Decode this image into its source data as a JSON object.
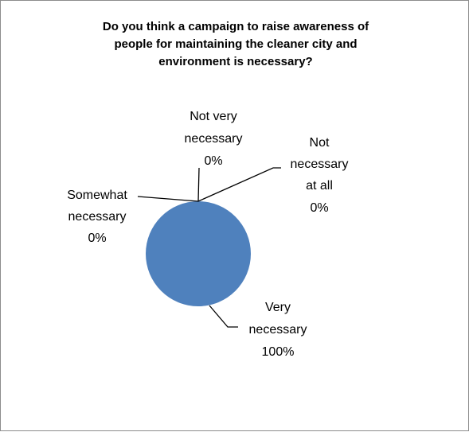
{
  "chart_data": {
    "type": "pie",
    "title": "Do you think a campaign to raise awareness of people for maintaining the cleaner city and environment is necessary?",
    "title_lines": [
      "Do you think a campaign to raise awareness of",
      "people for maintaining the cleaner city and",
      "environment is necessary?"
    ],
    "slices": [
      {
        "label": "Very necessary",
        "label_lines": [
          "Very",
          "necessary",
          "100%"
        ],
        "value": 100,
        "color": "#4f81bd"
      },
      {
        "label": "Somewhat necessary",
        "label_lines": [
          "Somewhat",
          "necessary",
          "0%"
        ],
        "value": 0,
        "color": "#c0504d"
      },
      {
        "label": "Not very necessary",
        "label_lines": [
          "Not very",
          "necessary",
          "0%"
        ],
        "value": 0,
        "color": "#9bbb59"
      },
      {
        "label": "Not necessary at all",
        "label_lines": [
          "Not",
          "necessary",
          "at all",
          "0%"
        ],
        "value": 0,
        "color": "#8064a2"
      }
    ],
    "legend": "none",
    "data_labels": "outside with leader lines"
  }
}
